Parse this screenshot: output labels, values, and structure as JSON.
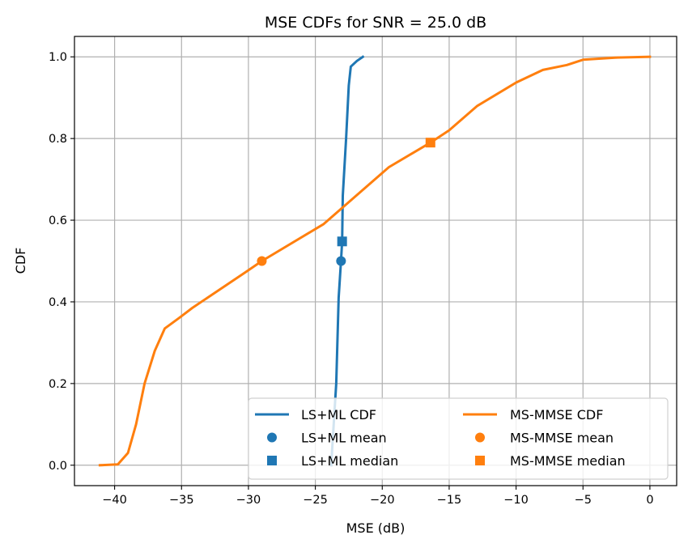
{
  "chart_data": {
    "type": "line",
    "title": "MSE CDFs for SNR = 25.0 dB",
    "xlabel": "MSE (dB)",
    "ylabel": "CDF",
    "xlim": [
      -43.0,
      2.0
    ],
    "ylim": [
      -0.05,
      1.05
    ],
    "grid": true,
    "legend_placement": "lower right",
    "legend_columns": 2,
    "xticks": [
      -40,
      -35,
      -30,
      -25,
      -20,
      -15,
      -10,
      -5,
      0
    ],
    "xtick_labels": [
      "−40",
      "−35",
      "−30",
      "−25",
      "−20",
      "−15",
      "−10",
      "−5",
      "0"
    ],
    "yticks": [
      0.0,
      0.2,
      0.4,
      0.6,
      0.8,
      1.0
    ],
    "ytick_labels": [
      "0.0",
      "0.2",
      "0.4",
      "0.6",
      "0.8",
      "1.0"
    ],
    "series": [
      {
        "name": "LS+ML CDF",
        "kind": "line",
        "color": "#1f77b4",
        "x": [
          -23.8,
          -23.75,
          -23.44,
          -23.26,
          -23.08,
          -23.0,
          -22.95,
          -22.7,
          -22.5,
          -22.35,
          -21.9,
          -21.45
        ],
        "y": [
          0.0,
          0.037,
          0.2,
          0.41,
          0.5,
          0.548,
          0.66,
          0.8,
          0.93,
          0.976,
          0.99,
          1.0
        ]
      },
      {
        "name": "MS-MMSE CDF",
        "kind": "line",
        "color": "#ff7f0e",
        "x": [
          -41.1,
          -39.76,
          -39.0,
          -38.4,
          -37.76,
          -37.0,
          -36.25,
          -35.2,
          -34.2,
          -30.2,
          -29.0,
          -24.4,
          -19.5,
          -16.4,
          -15.0,
          -12.9,
          -10.0,
          -8.0,
          -6.2,
          -5.0,
          -2.6,
          0.0
        ],
        "y": [
          0.0,
          0.002,
          0.03,
          0.1,
          0.2,
          0.28,
          0.335,
          0.36,
          0.385,
          0.473,
          0.5,
          0.59,
          0.73,
          0.79,
          0.82,
          0.88,
          0.937,
          0.968,
          0.98,
          0.993,
          0.998,
          1.0
        ]
      }
    ],
    "markers": [
      {
        "name": "LS+ML mean",
        "shape": "circle",
        "color": "#1f77b4",
        "x": -23.08,
        "y": 0.5
      },
      {
        "name": "LS+ML median",
        "shape": "square",
        "color": "#1f77b4",
        "x": -23.0,
        "y": 0.548
      },
      {
        "name": "MS-MMSE mean",
        "shape": "circle",
        "color": "#ff7f0e",
        "x": -29.0,
        "y": 0.5
      },
      {
        "name": "MS-MMSE median",
        "shape": "square",
        "color": "#ff7f0e",
        "x": -16.4,
        "y": 0.79
      }
    ],
    "legend": [
      {
        "label": "LS+ML CDF",
        "shape": "line",
        "color": "#1f77b4"
      },
      {
        "label": "LS+ML mean",
        "shape": "circle",
        "color": "#1f77b4"
      },
      {
        "label": "LS+ML median",
        "shape": "square",
        "color": "#1f77b4"
      },
      {
        "label": "MS-MMSE CDF",
        "shape": "line",
        "color": "#ff7f0e"
      },
      {
        "label": "MS-MMSE mean",
        "shape": "circle",
        "color": "#ff7f0e"
      },
      {
        "label": "MS-MMSE median",
        "shape": "square",
        "color": "#ff7f0e"
      }
    ]
  }
}
